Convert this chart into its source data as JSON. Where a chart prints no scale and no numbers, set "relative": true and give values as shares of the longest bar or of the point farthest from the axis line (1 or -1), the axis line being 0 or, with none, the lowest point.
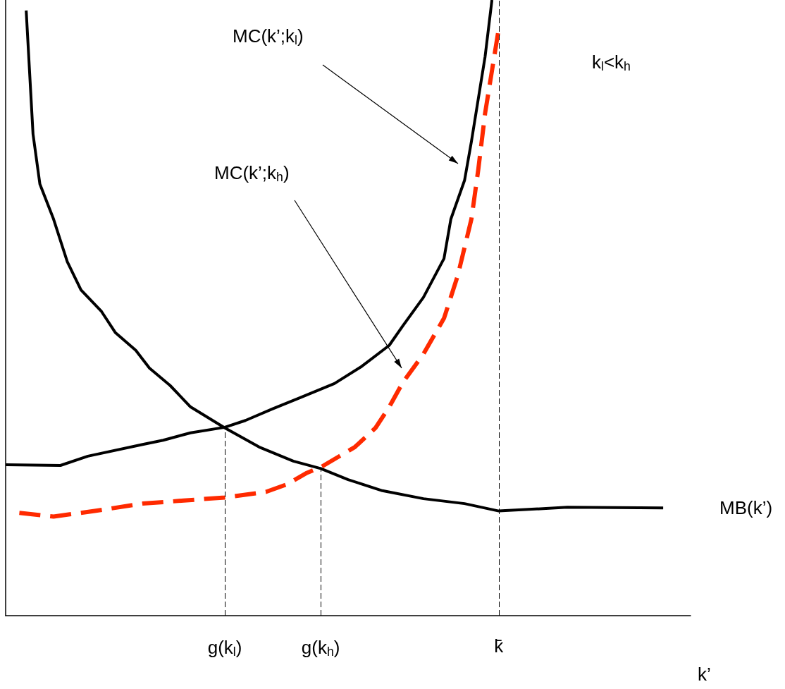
{
  "chart_data": {
    "type": "line",
    "relative": true,
    "xlabel": "k’",
    "categories": [
      null,
      null,
      null,
      null,
      null,
      null,
      null,
      null,
      null,
      null,
      null,
      null,
      null,
      null,
      null,
      null,
      null,
      null,
      null,
      null,
      null,
      null,
      null,
      null,
      null,
      null,
      null,
      null,
      null,
      null,
      null,
      null,
      "g(k$_{l}$)",
      null,
      null,
      null,
      null,
      null,
      null,
      null,
      null,
      null,
      null,
      null,
      null,
      null,
      "g(k$_{h}$)",
      null,
      null,
      null,
      null,
      null,
      null,
      null,
      null,
      null,
      null,
      null,
      null,
      null,
      null,
      null,
      null,
      null,
      null,
      null,
      null,
      null,
      null,
      null,
      null,
      null,
      "k̄",
      null,
      null,
      null,
      null,
      null,
      null,
      null,
      null,
      null,
      null,
      null,
      null,
      null,
      null,
      null,
      null,
      null,
      null,
      null,
      null,
      null,
      null,
      null,
      null,
      null,
      null,
      null,
      null
    ],
    "grid": false,
    "legend": false,
    "marker": "none",
    "series": [
      {
        "name": "MB(k’)",
        "color": "#000000",
        "line_style": "solid",
        "values": [
          null,
          null,
          null,
          0.983,
          0.782,
          0.701,
          null,
          0.644,
          null,
          0.575,
          null,
          0.529,
          null,
          null,
          0.494,
          null,
          0.46,
          null,
          null,
          0.431,
          null,
          0.402,
          null,
          null,
          0.374,
          null,
          null,
          0.339,
          null,
          null,
          null,
          null,
          0.305,
          null,
          null,
          null,
          null,
          0.274,
          null,
          null,
          null,
          null,
          0.251,
          null,
          null,
          null,
          0.239,
          null,
          null,
          null,
          0.221,
          null,
          null,
          null,
          null,
          0.203,
          null,
          null,
          null,
          null,
          null,
          0.19,
          null,
          null,
          null,
          null,
          null,
          0.182,
          null,
          null,
          null,
          null,
          0.17,
          null,
          null,
          null,
          null,
          null,
          null,
          null,
          null,
          null,
          0.176,
          null,
          null,
          null,
          null,
          null,
          null,
          null,
          null,
          null,
          null,
          null,
          null,
          null,
          0.175,
          null,
          null,
          null,
          null
        ]
      },
      {
        "color": "#000000",
        "line_style": "solid",
        "values": [
          0.245,
          null,
          null,
          null,
          null,
          null,
          null,
          null,
          0.244,
          null,
          null,
          null,
          0.259,
          null,
          null,
          null,
          null,
          null,
          null,
          null,
          0.278,
          null,
          null,
          0.285,
          null,
          null,
          null,
          0.297,
          null,
          null,
          null,
          null,
          0.306,
          null,
          null,
          0.317,
          null,
          null,
          null,
          0.336,
          null,
          null,
          null,
          0.354,
          null,
          null,
          null,
          null,
          0.377,
          null,
          null,
          null,
          0.405,
          null,
          null,
          null,
          0.439,
          null,
          0.471,
          null,
          null,
          0.517,
          null,
          null,
          0.58,
          0.644,
          null,
          0.707,
          0.77,
          0.839,
          0.908,
          1,
          null,
          null,
          null,
          null,
          null,
          null,
          null,
          null,
          null,
          null,
          null,
          null,
          null,
          null,
          null,
          null,
          null,
          null,
          null,
          null,
          null,
          null,
          null,
          null,
          null,
          null,
          null,
          null,
          null
        ]
      },
      {
        "color": "#ff2a00",
        "line_style": "dashed",
        "values": [
          null,
          null,
          0.167,
          null,
          null,
          null,
          null,
          0.161,
          null,
          null,
          null,
          null,
          null,
          0.17,
          null,
          null,
          null,
          null,
          null,
          null,
          0.182,
          null,
          null,
          null,
          null,
          null,
          0.187,
          null,
          null,
          null,
          null,
          null,
          0.192,
          null,
          null,
          null,
          null,
          null,
          0.201,
          null,
          null,
          0.213,
          null,
          null,
          0.232,
          null,
          0.241,
          null,
          null,
          null,
          null,
          0.274,
          null,
          null,
          0.305,
          null,
          0.339,
          null,
          0.379,
          null,
          null,
          0.425,
          null,
          null,
          0.483,
          null,
          0.552,
          null,
          0.644,
          0.724,
          0.816,
          0.885,
          0.954,
          null,
          null,
          null,
          null,
          null,
          null,
          null,
          null,
          null,
          null,
          null,
          null,
          null,
          null,
          null,
          null,
          null,
          null,
          null,
          null,
          null,
          null,
          null,
          null,
          null,
          null,
          null,
          null
        ]
      }
    ],
    "ref_lines": [
      {
        "axis": "x",
        "value": "g(k$_{l}$)",
        "color": "#000000",
        "line_style": "dashed"
      },
      {
        "axis": "x",
        "value": "g(k$_{h}$)",
        "color": "#000000",
        "line_style": "dashed"
      },
      {
        "axis": "x",
        "value": "k̄",
        "color": "#000000",
        "line_style": "dashed"
      }
    ],
    "annotations": [
      "MC(k’;k$_{l}$)",
      "MC(k’;k$_{h}$)",
      "k$_{l}$<k$_{h}$"
    ]
  }
}
